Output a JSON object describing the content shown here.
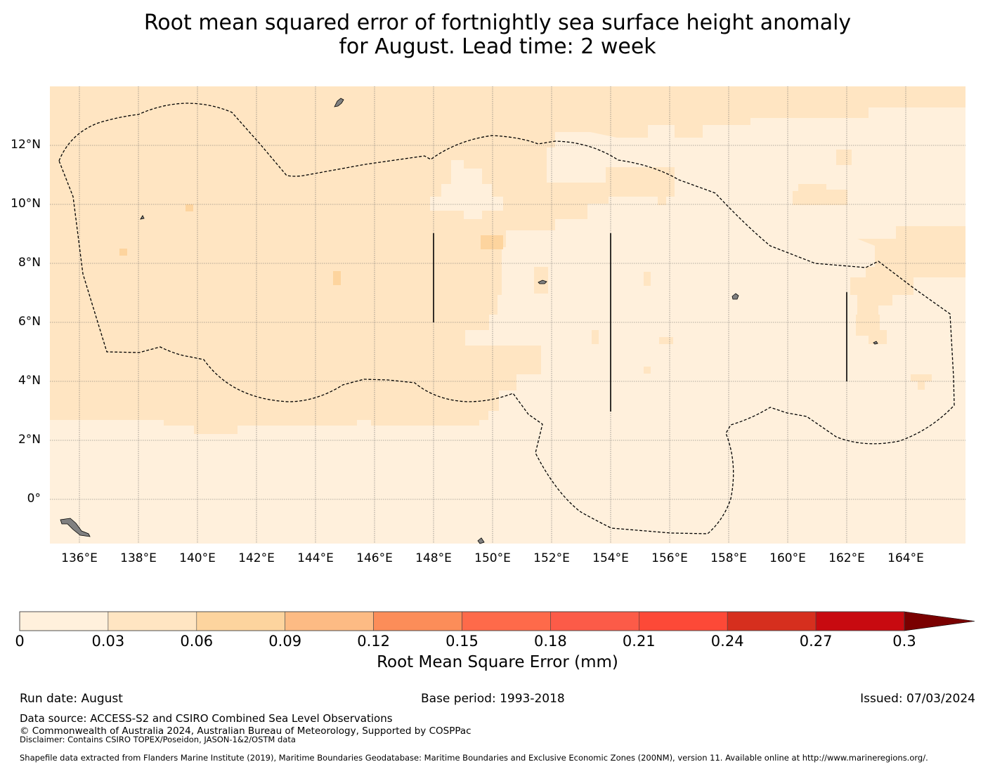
{
  "title": {
    "line1": "Root mean squared error of fortnightly sea surface height anomaly",
    "line2": "for August. Lead time: 2 week"
  },
  "map": {
    "lon_labels": [
      "136°E",
      "138°E",
      "140°E",
      "142°E",
      "144°E",
      "146°E",
      "148°E",
      "150°E",
      "152°E",
      "154°E",
      "156°E",
      "158°E",
      "160°E",
      "162°E",
      "164°E"
    ],
    "lat_labels": [
      "12°N",
      "10°N",
      "8°N",
      "6°N",
      "4°N",
      "2°N",
      "0°"
    ],
    "extent": {
      "lon": [
        135,
        166
      ],
      "lat": [
        -1.5,
        14
      ]
    },
    "colors": {
      "land": "#808080",
      "coastline": "#000000",
      "eez_boundary": "#000000",
      "gridline": "#666666"
    },
    "field_colors": {
      "band_0_003": "#fff0dc",
      "band_003_006": "#ffe5c2",
      "band_006_009": "#fdd49e"
    }
  },
  "colorbar": {
    "ticks": [
      "0",
      "0.03",
      "0.06",
      "0.09",
      "0.12",
      "0.15",
      "0.18",
      "0.21",
      "0.24",
      "0.27",
      "0.3"
    ],
    "colors": [
      "#fff0dc",
      "#ffe5c2",
      "#fdd49e",
      "#fdbb84",
      "#fc8d59",
      "#fe6a4a",
      "#fc5b48",
      "#fd4937",
      "#d62f1e",
      "#c80a10",
      "#b00000"
    ],
    "extend_color": "#7a0000",
    "label": "Root Mean Square Error (mm)"
  },
  "footer": {
    "run_date": "Run date: August",
    "base_period": "Base period: 1993-2018",
    "issued": "Issued: 07/03/2024",
    "data_source": "Data source: ACCESS-S2 and CSIRO Combined Sea Level Observations",
    "copyright": "© Commonwealth of Australia 2024, Australian Bureau of Meteorology, Supported by COSPPac",
    "disclaimer": "Disclaimer: Contains CSIRO TOPEX/Poseidon, JASON-1&2/OSTM data",
    "shapefile": "Shapefile data extracted from Flanders Marine Institute (2019), Maritime Boundaries Geodatabase: Maritime Boundaries and Exclusive Economic Zones (200NM), version 11. Available online at http://www.marineregions.org/."
  }
}
